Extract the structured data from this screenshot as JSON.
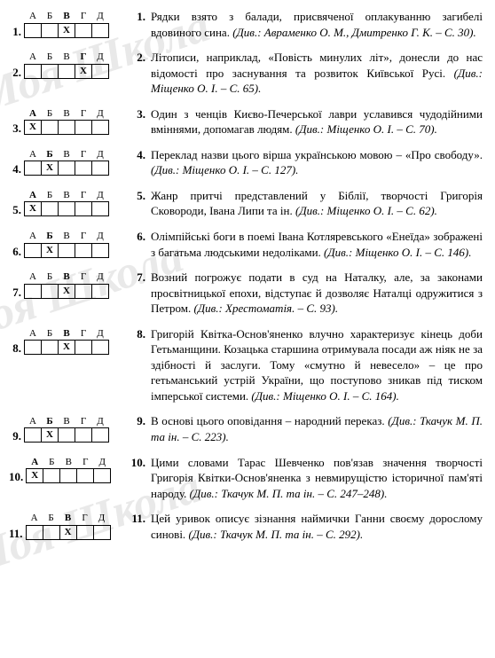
{
  "headers": [
    "А",
    "Б",
    "В",
    "Г",
    "Д"
  ],
  "mark_char": "Х",
  "items": [
    {
      "num": "1.",
      "bold_header_idx": 2,
      "answer_idx": 2,
      "tnum": "1.",
      "text": "Рядки взято з балади, присвяченої оплакуванню загибелі вдовиного сина. ",
      "ref": "(Див.: Авраменко О. М., Дмитренко Г. К. – С. 30)."
    },
    {
      "num": "2.",
      "bold_header_idx": 3,
      "answer_idx": 3,
      "tnum": "2.",
      "text": "Літописи, наприклад, «Повість минулих літ», донесли до нас відомості про заснування та розвиток Київської Русі. ",
      "ref": "(Див.: Міщенко О. І. – С. 65)."
    },
    {
      "num": "3.",
      "bold_header_idx": 0,
      "answer_idx": 0,
      "tnum": "3.",
      "text": "Один з ченців Києво-Печерської лаври уславився чудодійними вміннями, допомагав людям. ",
      "ref": "(Див.: Міщенко О. І. – С. 70)."
    },
    {
      "num": "4.",
      "bold_header_idx": 1,
      "answer_idx": 1,
      "tnum": "4.",
      "text": "Переклад назви цього вірша українською мовою – «Про свободу». ",
      "ref": "(Див.: Міщенко О. І. – С. 127)."
    },
    {
      "num": "5.",
      "bold_header_idx": 0,
      "answer_idx": 0,
      "tnum": "5.",
      "text": "Жанр притчі представлений у Біблії, творчості Григорія Сковороди, Івана Липи та ін. ",
      "ref": "(Див.: Міщенко О. І. – С. 62)."
    },
    {
      "num": "6.",
      "bold_header_idx": 1,
      "answer_idx": 1,
      "tnum": "6.",
      "text": "Олімпійські боги в поемі Івана Котляревського «Енеїда» зображені з багатьма людськими недоліками. ",
      "ref": "(Див.: Міщенко О. І. – С. 146)."
    },
    {
      "num": "7.",
      "bold_header_idx": 2,
      "answer_idx": 2,
      "tnum": "7.",
      "text": "Возний погрожує подати в суд на Наталку, але, за законами просвітницької епохи, відступає й дозволяє Наталці одружитися з Петром. ",
      "ref": "(Див.: Хрестоматія. – С. 93)."
    },
    {
      "num": "8.",
      "bold_header_idx": 2,
      "answer_idx": 2,
      "tnum": "8.",
      "text": "Григорій Квітка-Основ'яненко влучно характеризує кінець доби Гетьманщини. Козацька старшина отримувала посади аж ніяк не за здібності й заслуги. Тому «смутно й невесело» – це про гетьманський устрій України, що поступово зникав під тиском імперської системи. ",
      "ref": "(Див.: Міщенко О. І. – С. 164)."
    },
    {
      "num": "9.",
      "bold_header_idx": 1,
      "answer_idx": 1,
      "tnum": "9.",
      "text": "В основі цього оповідання – народний переказ. ",
      "ref": "(Див.: Ткачук М. П. та ін. – С. 223)."
    },
    {
      "num": "10.",
      "bold_header_idx": 0,
      "answer_idx": 0,
      "tnum": "10.",
      "text": "Цими словами Тарас Шевченко пов'язав значення творчості Григорія Квітки-Основ'яненка з невмирущістю історичної пам'яті народу. ",
      "ref": "(Див.: Ткачук М. П. та ін. – С. 247–248)."
    },
    {
      "num": "11.",
      "bold_header_idx": 2,
      "answer_idx": 2,
      "tnum": "11.",
      "text": "Цей уривок описує зізнання наймички Ганни своєму дорослому синові. ",
      "ref": "(Див.: Ткачук М. П. та ін. – С. 292)."
    }
  ]
}
